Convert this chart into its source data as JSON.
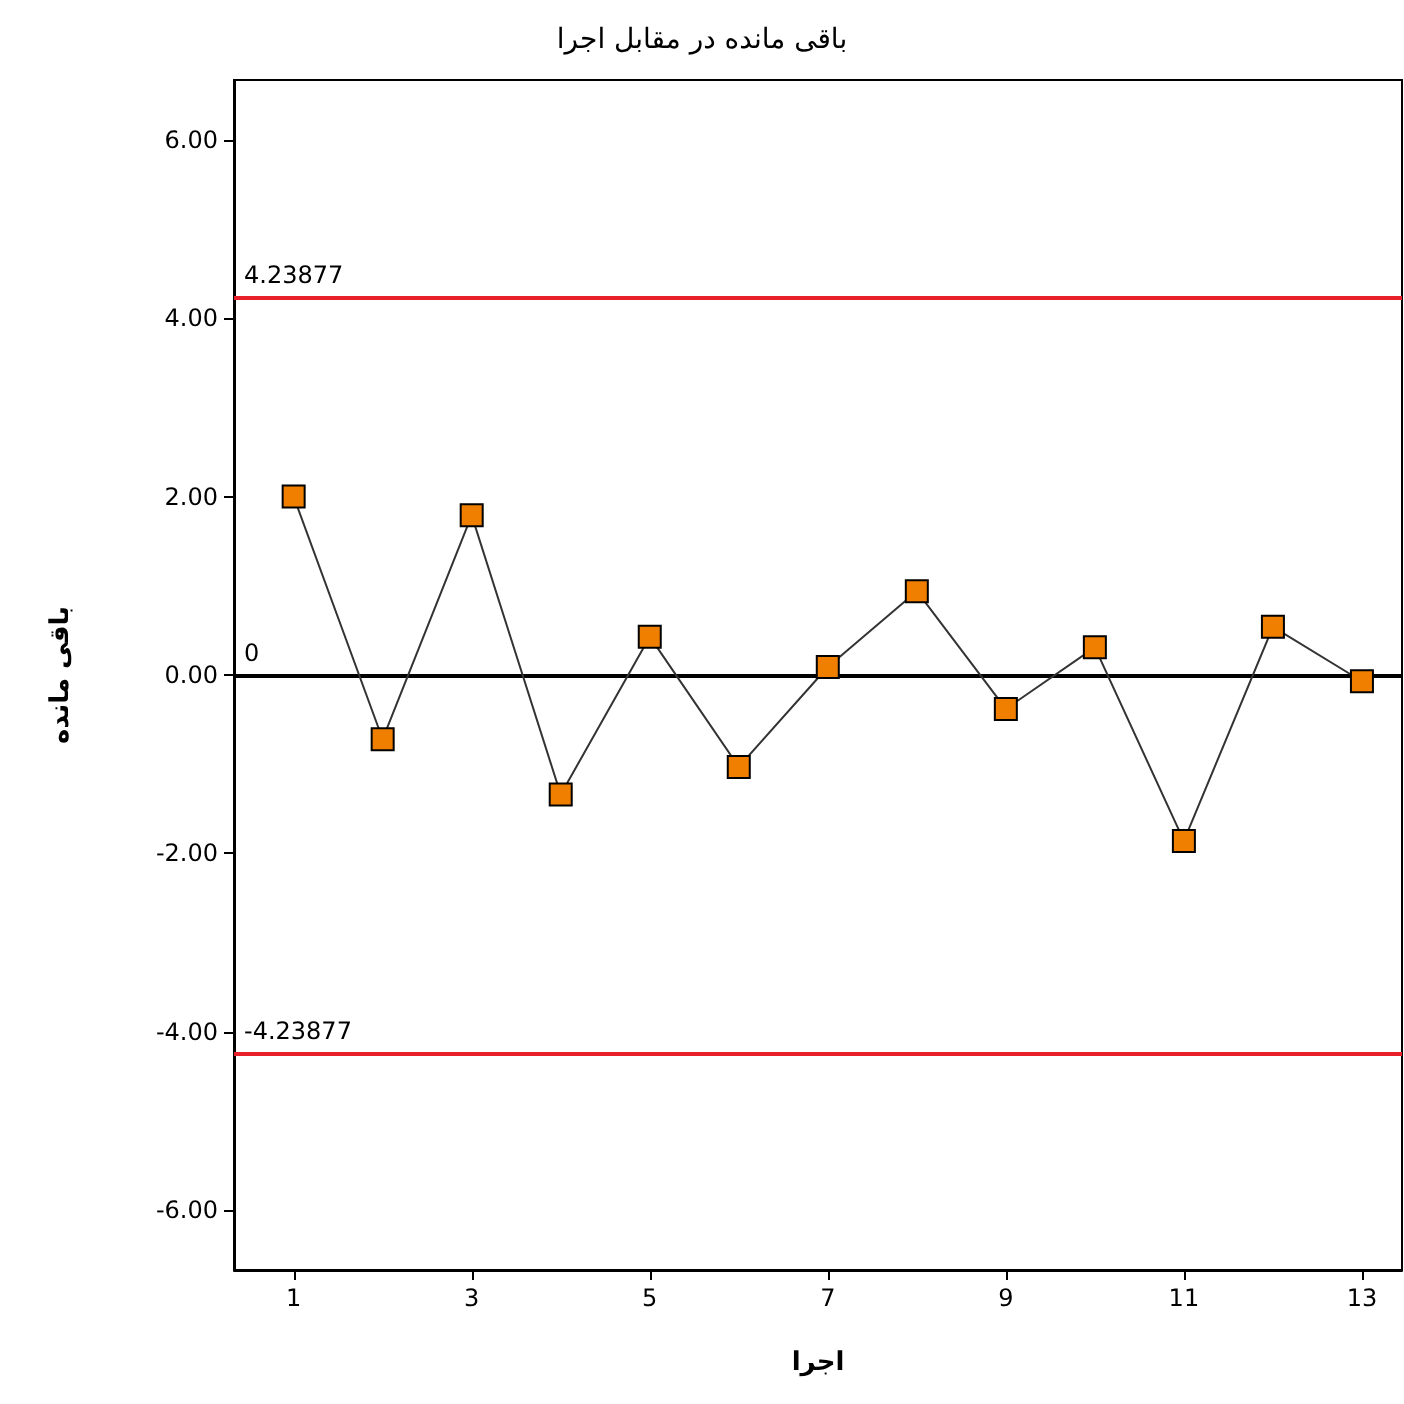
{
  "chart_data": {
    "type": "line",
    "title": "باقی مانده در مقابل اجرا",
    "xlabel": "اجرا",
    "ylabel": "باقی مانده",
    "x": [
      1,
      2,
      3,
      4,
      5,
      6,
      7,
      8,
      9,
      10,
      11,
      12,
      13
    ],
    "series": [
      {
        "color": "#f07f00",
        "values": [
          2.0,
          -0.72,
          1.79,
          -1.34,
          0.43,
          -1.03,
          0.09,
          0.94,
          -0.38,
          0.31,
          -1.86,
          0.54,
          -0.07
        ]
      }
    ],
    "xlim": [
      0.33,
      13.45
    ],
    "xticks": [
      1,
      3,
      5,
      7,
      9,
      11,
      13
    ],
    "ylim": [
      -6.67,
      6.67
    ],
    "yticks": [
      {
        "value": -6,
        "label": "-6.00"
      },
      {
        "value": -4,
        "label": "-4.00"
      },
      {
        "value": -2,
        "label": "-2.00"
      },
      {
        "value": 0,
        "label": "0.00"
      },
      {
        "value": 2,
        "label": "2.00"
      },
      {
        "value": 4,
        "label": "4.00"
      },
      {
        "value": 6,
        "label": "6.00"
      }
    ],
    "ref_lines": [
      {
        "axis": "y",
        "value": 4.23877,
        "label": "4.23877",
        "color": "#e8202a"
      },
      {
        "axis": "y",
        "value": 0,
        "label": "0",
        "color": "#000000"
      },
      {
        "axis": "y",
        "value": -4.23877,
        "label": "-4.23877",
        "color": "#e8202a"
      }
    ],
    "grid": false,
    "marker": "square",
    "line_style": "solid"
  }
}
